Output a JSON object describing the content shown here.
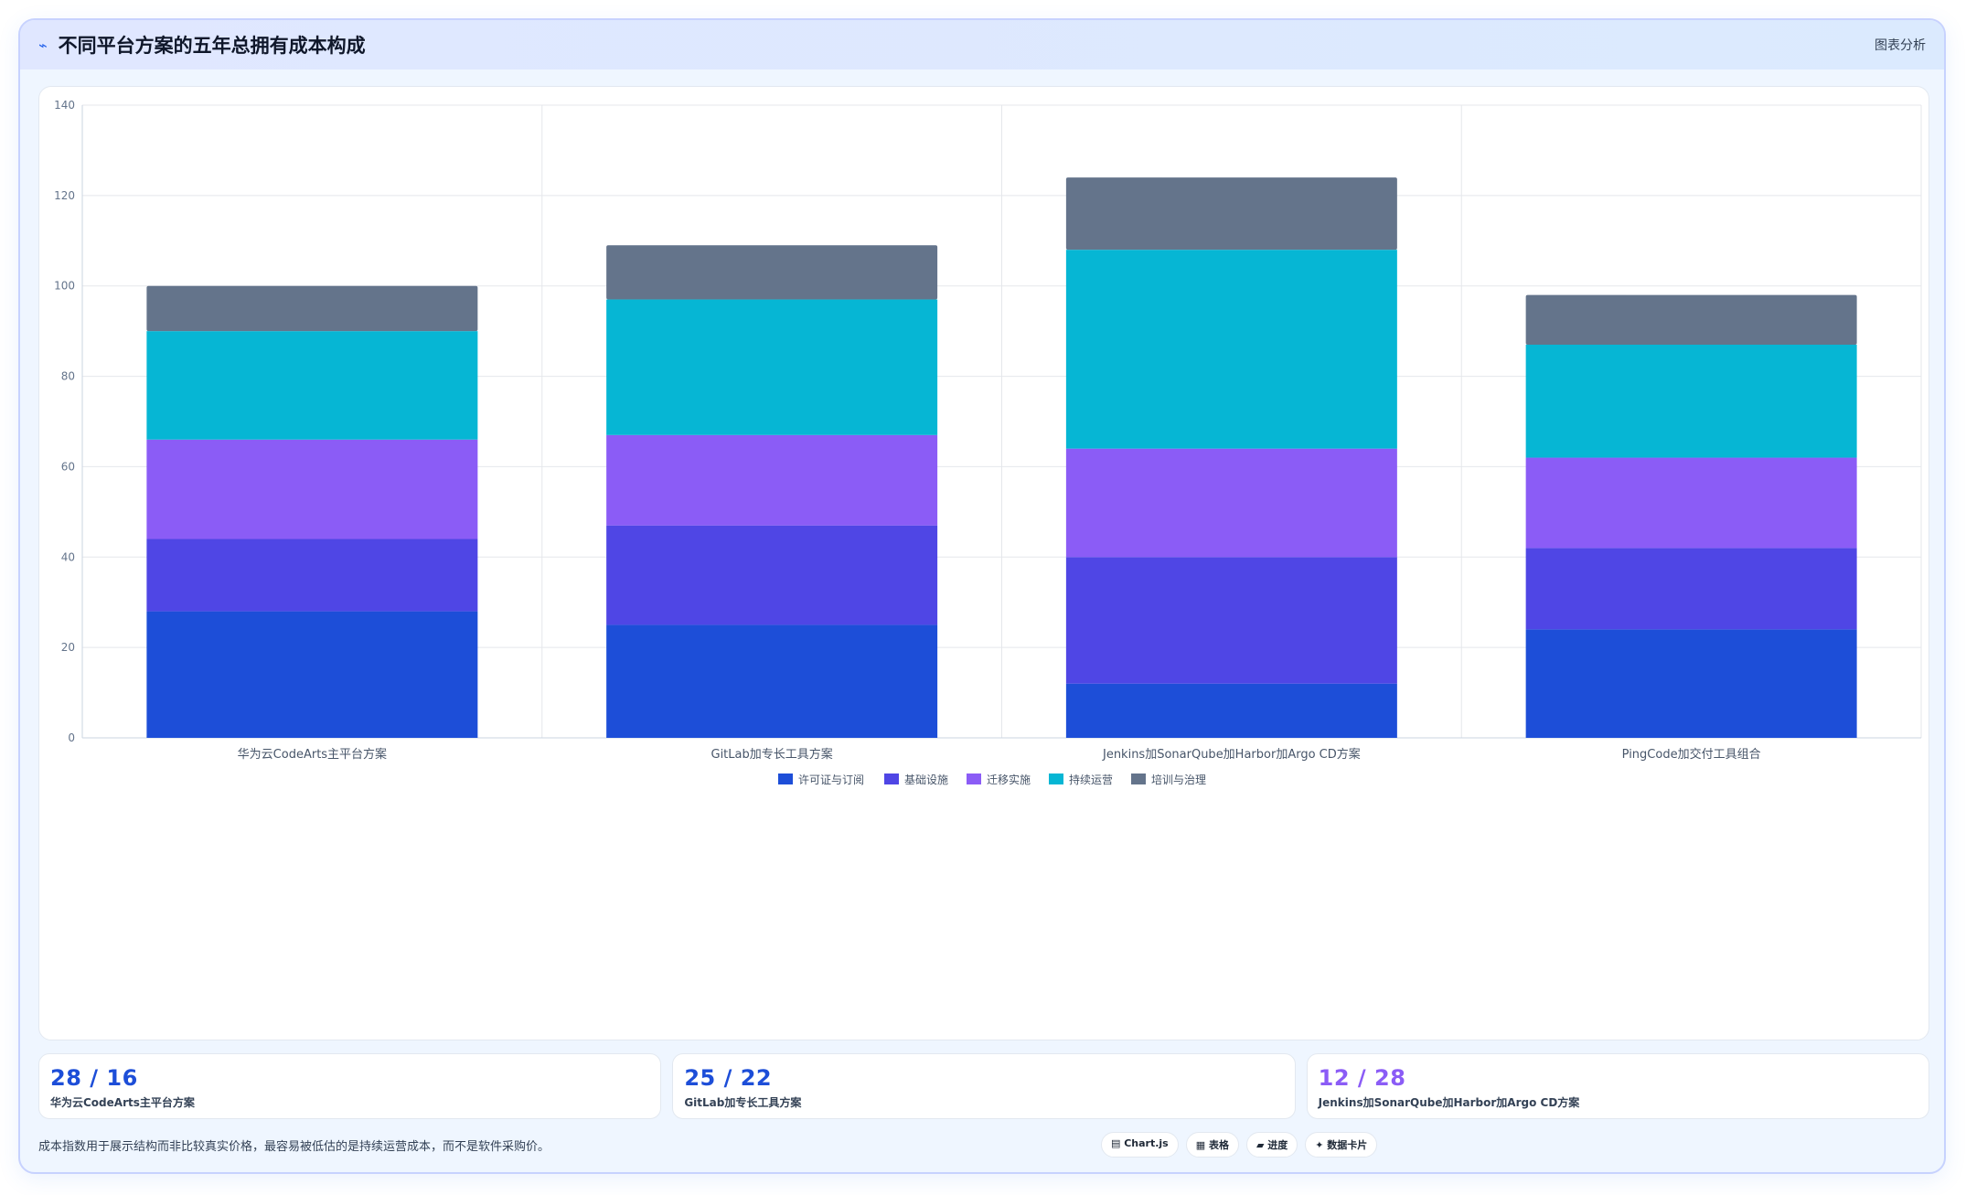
{
  "header": {
    "logo_glyph": "⌁",
    "title": "不同平台方案的五年总拥有成本构成",
    "right_label": "图表分析"
  },
  "chart_data": {
    "type": "bar",
    "stacked": true,
    "categories": [
      "华为云CodeArts主平台方案",
      "GitLab加专长工具方案",
      "Jenkins加SonarQube加Harbor加Argo CD方案",
      "PingCode加交付工具组合"
    ],
    "series": [
      {
        "name": "许可证与订阅",
        "color": "#1d4ed8",
        "values": [
          28,
          25,
          12,
          24
        ]
      },
      {
        "name": "基础设施",
        "color": "#4f46e5",
        "values": [
          16,
          22,
          28,
          18
        ]
      },
      {
        "name": "迁移实施",
        "color": "#8b5cf6",
        "values": [
          22,
          20,
          24,
          20
        ]
      },
      {
        "name": "持续运营",
        "color": "#06b6d4",
        "values": [
          24,
          30,
          44,
          25
        ]
      },
      {
        "name": "培训与治理",
        "color": "#64748b",
        "values": [
          10,
          12,
          16,
          11
        ]
      }
    ],
    "ylim": [
      0,
      140
    ],
    "yticks": [
      0,
      20,
      40,
      60,
      80,
      100,
      120,
      140
    ],
    "grid": true,
    "legend_position": "bottom"
  },
  "cards": [
    {
      "value": "28 / 16",
      "label": "华为云CodeArts主平台方案",
      "color": "#1d4ed8"
    },
    {
      "value": "25 / 22",
      "label": "GitLab加专长工具方案",
      "color": "#1d4ed8"
    },
    {
      "value": "12 / 28",
      "label": "Jenkins加SonarQube加Harbor加Argo CD方案",
      "color": "#8b5cf6"
    }
  ],
  "footer": {
    "note": "成本指数用于展示结构而非比较真实价格，最容易被低估的是持续运营成本，而不是软件采购价。",
    "tools": [
      {
        "key": "chartjs",
        "label": "▤ Chart.js"
      },
      {
        "key": "table",
        "label": "▦ 表格"
      },
      {
        "key": "progress",
        "label": "▰ 进度"
      },
      {
        "key": "cards",
        "label": "✦ 数据卡片"
      }
    ]
  }
}
